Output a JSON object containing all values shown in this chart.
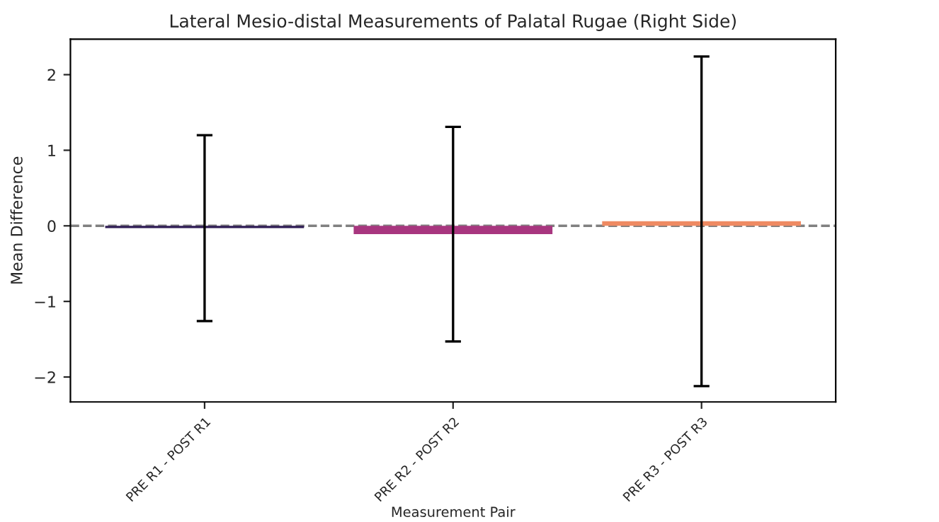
{
  "chart_data": {
    "type": "bar",
    "title": "Lateral Mesio-distal Measurements of Palatal Rugae (Right Side)",
    "xlabel": "Measurement Pair",
    "ylabel": "Mean Difference",
    "categories": [
      "PRE R1 - POST R1",
      "PRE R2 - POST R2",
      "PRE R3 - POST R3"
    ],
    "values": [
      -0.03,
      -0.11,
      0.06
    ],
    "colors": [
      "#2f1c55",
      "#a8367f",
      "#ef8a62"
    ],
    "errors": [
      1.23,
      1.42,
      2.18
    ],
    "ylim": [
      -2.33,
      2.47
    ],
    "yticks": [
      {
        "value": -2,
        "label": "−2"
      },
      {
        "value": -1,
        "label": "−1"
      },
      0,
      1,
      2
    ],
    "ref_lines": [
      {
        "axis": "y",
        "value": 0,
        "color": "#808080",
        "line_style": "dashed"
      }
    ],
    "grid": false
  }
}
